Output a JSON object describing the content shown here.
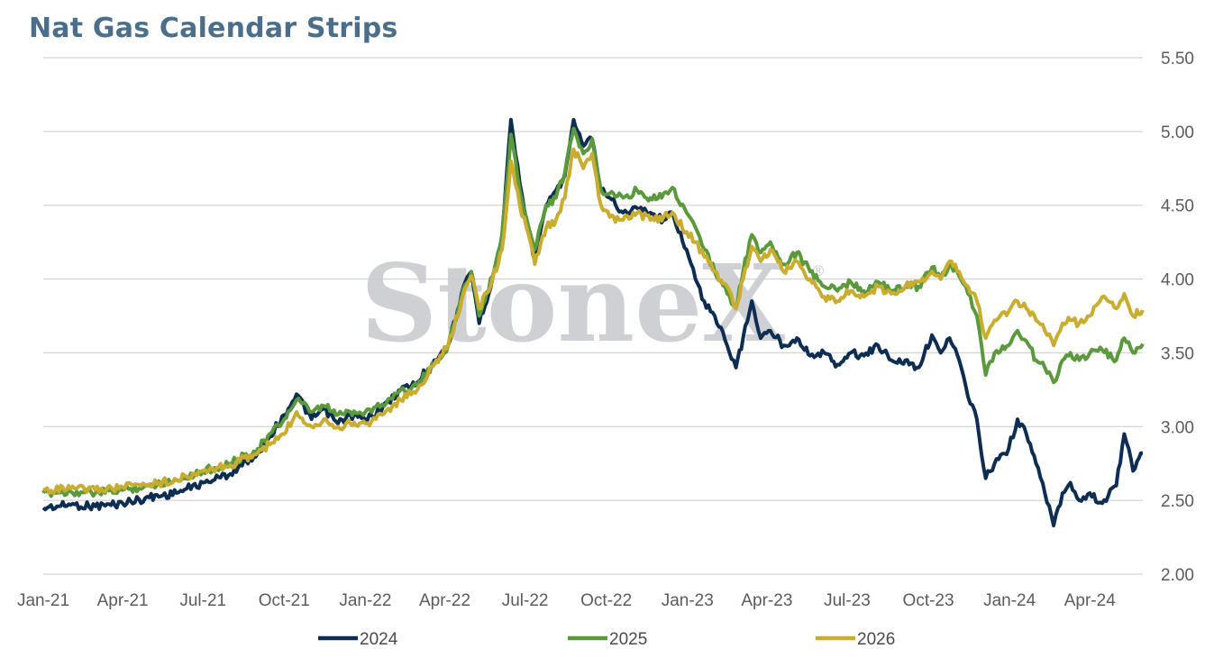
{
  "title": "Nat Gas Calendar Strips",
  "watermark": {
    "text": "StoneX",
    "mark": "®"
  },
  "chart_data": {
    "type": "line",
    "title": "Nat Gas Calendar Strips",
    "xlabel": "",
    "ylabel": "",
    "x_ticks": [
      "Jan-21",
      "Apr-21",
      "Jul-21",
      "Oct-21",
      "Jan-22",
      "Apr-22",
      "Jul-22",
      "Oct-22",
      "Jan-23",
      "Apr-23",
      "Jul-23",
      "Oct-23",
      "Jan-24",
      "Apr-24"
    ],
    "x_tick_dates": [
      "2021-01-01",
      "2021-04-01",
      "2021-07-01",
      "2021-10-01",
      "2022-01-01",
      "2022-04-01",
      "2022-07-01",
      "2022-10-01",
      "2023-01-01",
      "2023-04-01",
      "2023-07-01",
      "2023-10-01",
      "2024-01-01",
      "2024-04-01"
    ],
    "xlim": [
      "2021-01-01",
      "2024-05-31"
    ],
    "ylim": [
      2.0,
      5.5
    ],
    "y_ticks": [
      "2.00",
      "2.50",
      "3.00",
      "3.50",
      "4.00",
      "4.50",
      "5.00",
      "5.50"
    ],
    "y_axis_side": "right",
    "grid": "horizontal",
    "legend_position": "bottom",
    "series": [
      {
        "name": "2024",
        "color": "#0e2d52",
        "points": [
          [
            "2021-01-01",
            2.45
          ],
          [
            "2021-02-01",
            2.47
          ],
          [
            "2021-03-01",
            2.46
          ],
          [
            "2021-04-01",
            2.48
          ],
          [
            "2021-05-01",
            2.52
          ],
          [
            "2021-06-01",
            2.55
          ],
          [
            "2021-07-01",
            2.62
          ],
          [
            "2021-08-01",
            2.68
          ],
          [
            "2021-09-01",
            2.82
          ],
          [
            "2021-10-01",
            3.08
          ],
          [
            "2021-10-15",
            3.22
          ],
          [
            "2021-11-01",
            3.05
          ],
          [
            "2021-11-15",
            3.12
          ],
          [
            "2021-12-01",
            3.02
          ],
          [
            "2021-12-15",
            3.08
          ],
          [
            "2022-01-01",
            3.05
          ],
          [
            "2022-01-20",
            3.12
          ],
          [
            "2022-02-10",
            3.25
          ],
          [
            "2022-03-01",
            3.3
          ],
          [
            "2022-03-20",
            3.45
          ],
          [
            "2022-04-05",
            3.55
          ],
          [
            "2022-04-20",
            3.9
          ],
          [
            "2022-05-01",
            4.05
          ],
          [
            "2022-05-10",
            3.7
          ],
          [
            "2022-05-25",
            4.0
          ],
          [
            "2022-06-05",
            4.3
          ],
          [
            "2022-06-15",
            5.08
          ],
          [
            "2022-06-25",
            4.65
          ],
          [
            "2022-07-05",
            4.35
          ],
          [
            "2022-07-12",
            4.12
          ],
          [
            "2022-07-25",
            4.5
          ],
          [
            "2022-08-05",
            4.6
          ],
          [
            "2022-08-15",
            4.7
          ],
          [
            "2022-08-25",
            5.08
          ],
          [
            "2022-09-05",
            4.9
          ],
          [
            "2022-09-15",
            4.95
          ],
          [
            "2022-09-25",
            4.6
          ],
          [
            "2022-10-05",
            4.55
          ],
          [
            "2022-10-20",
            4.45
          ],
          [
            "2022-11-05",
            4.48
          ],
          [
            "2022-11-20",
            4.45
          ],
          [
            "2022-12-05",
            4.4
          ],
          [
            "2022-12-15",
            4.45
          ],
          [
            "2022-12-31",
            4.2
          ],
          [
            "2023-01-10",
            4.0
          ],
          [
            "2023-01-20",
            3.85
          ],
          [
            "2023-02-01",
            3.75
          ],
          [
            "2023-02-15",
            3.55
          ],
          [
            "2023-02-25",
            3.4
          ],
          [
            "2023-03-05",
            3.6
          ],
          [
            "2023-03-15",
            3.85
          ],
          [
            "2023-03-25",
            3.6
          ],
          [
            "2023-04-05",
            3.65
          ],
          [
            "2023-04-20",
            3.55
          ],
          [
            "2023-05-05",
            3.6
          ],
          [
            "2023-05-20",
            3.48
          ],
          [
            "2023-06-05",
            3.5
          ],
          [
            "2023-06-20",
            3.42
          ],
          [
            "2023-07-05",
            3.5
          ],
          [
            "2023-07-20",
            3.48
          ],
          [
            "2023-08-05",
            3.55
          ],
          [
            "2023-08-20",
            3.45
          ],
          [
            "2023-09-05",
            3.45
          ],
          [
            "2023-09-20",
            3.4
          ],
          [
            "2023-10-05",
            3.62
          ],
          [
            "2023-10-15",
            3.5
          ],
          [
            "2023-10-25",
            3.6
          ],
          [
            "2023-11-05",
            3.45
          ],
          [
            "2023-11-15",
            3.2
          ],
          [
            "2023-11-25",
            3.05
          ],
          [
            "2023-12-05",
            2.65
          ],
          [
            "2023-12-15",
            2.75
          ],
          [
            "2023-12-31",
            2.85
          ],
          [
            "2024-01-10",
            3.05
          ],
          [
            "2024-01-20",
            2.95
          ],
          [
            "2024-01-31",
            2.75
          ],
          [
            "2024-02-10",
            2.55
          ],
          [
            "2024-02-20",
            2.33
          ],
          [
            "2024-03-01",
            2.55
          ],
          [
            "2024-03-10",
            2.62
          ],
          [
            "2024-03-20",
            2.5
          ],
          [
            "2024-04-01",
            2.55
          ],
          [
            "2024-04-15",
            2.48
          ],
          [
            "2024-05-01",
            2.6
          ],
          [
            "2024-05-10",
            2.95
          ],
          [
            "2024-05-20",
            2.7
          ],
          [
            "2024-05-31",
            2.82
          ]
        ]
      },
      {
        "name": "2025",
        "color": "#5a9a3c",
        "points": [
          [
            "2021-01-01",
            2.55
          ],
          [
            "2021-02-01",
            2.56
          ],
          [
            "2021-03-01",
            2.55
          ],
          [
            "2021-04-01",
            2.57
          ],
          [
            "2021-05-01",
            2.6
          ],
          [
            "2021-06-01",
            2.64
          ],
          [
            "2021-07-01",
            2.7
          ],
          [
            "2021-08-01",
            2.75
          ],
          [
            "2021-09-01",
            2.85
          ],
          [
            "2021-10-01",
            3.05
          ],
          [
            "2021-10-15",
            3.18
          ],
          [
            "2021-11-01",
            3.1
          ],
          [
            "2021-11-15",
            3.14
          ],
          [
            "2021-12-01",
            3.08
          ],
          [
            "2021-12-15",
            3.1
          ],
          [
            "2022-01-01",
            3.1
          ],
          [
            "2022-01-20",
            3.15
          ],
          [
            "2022-02-10",
            3.25
          ],
          [
            "2022-03-01",
            3.28
          ],
          [
            "2022-03-20",
            3.42
          ],
          [
            "2022-04-05",
            3.55
          ],
          [
            "2022-04-20",
            3.88
          ],
          [
            "2022-05-01",
            4.05
          ],
          [
            "2022-05-10",
            3.75
          ],
          [
            "2022-05-25",
            4.02
          ],
          [
            "2022-06-05",
            4.3
          ],
          [
            "2022-06-15",
            4.98
          ],
          [
            "2022-06-25",
            4.6
          ],
          [
            "2022-07-05",
            4.35
          ],
          [
            "2022-07-12",
            4.2
          ],
          [
            "2022-07-25",
            4.5
          ],
          [
            "2022-08-05",
            4.55
          ],
          [
            "2022-08-15",
            4.72
          ],
          [
            "2022-08-25",
            5.02
          ],
          [
            "2022-09-05",
            4.85
          ],
          [
            "2022-09-15",
            4.95
          ],
          [
            "2022-09-25",
            4.6
          ],
          [
            "2022-10-05",
            4.58
          ],
          [
            "2022-10-20",
            4.55
          ],
          [
            "2022-11-05",
            4.6
          ],
          [
            "2022-11-20",
            4.55
          ],
          [
            "2022-12-05",
            4.58
          ],
          [
            "2022-12-15",
            4.62
          ],
          [
            "2022-12-31",
            4.45
          ],
          [
            "2023-01-10",
            4.35
          ],
          [
            "2023-01-20",
            4.2
          ],
          [
            "2023-02-01",
            4.05
          ],
          [
            "2023-02-15",
            3.9
          ],
          [
            "2023-02-25",
            3.8
          ],
          [
            "2023-03-05",
            4.05
          ],
          [
            "2023-03-15",
            4.3
          ],
          [
            "2023-03-25",
            4.18
          ],
          [
            "2023-04-05",
            4.25
          ],
          [
            "2023-04-20",
            4.1
          ],
          [
            "2023-05-05",
            4.18
          ],
          [
            "2023-05-20",
            4.05
          ],
          [
            "2023-06-05",
            3.95
          ],
          [
            "2023-06-20",
            3.92
          ],
          [
            "2023-07-05",
            3.98
          ],
          [
            "2023-07-20",
            3.92
          ],
          [
            "2023-08-05",
            3.98
          ],
          [
            "2023-08-20",
            3.92
          ],
          [
            "2023-09-05",
            3.95
          ],
          [
            "2023-09-20",
            3.95
          ],
          [
            "2023-10-05",
            4.08
          ],
          [
            "2023-10-15",
            4.0
          ],
          [
            "2023-10-25",
            4.1
          ],
          [
            "2023-11-05",
            4.02
          ],
          [
            "2023-11-15",
            3.9
          ],
          [
            "2023-11-25",
            3.75
          ],
          [
            "2023-12-05",
            3.35
          ],
          [
            "2023-12-15",
            3.5
          ],
          [
            "2023-12-31",
            3.55
          ],
          [
            "2024-01-10",
            3.65
          ],
          [
            "2024-01-20",
            3.58
          ],
          [
            "2024-01-31",
            3.45
          ],
          [
            "2024-02-10",
            3.4
          ],
          [
            "2024-02-20",
            3.3
          ],
          [
            "2024-03-01",
            3.45
          ],
          [
            "2024-03-10",
            3.5
          ],
          [
            "2024-03-20",
            3.45
          ],
          [
            "2024-04-01",
            3.5
          ],
          [
            "2024-04-15",
            3.52
          ],
          [
            "2024-05-01",
            3.45
          ],
          [
            "2024-05-10",
            3.6
          ],
          [
            "2024-05-20",
            3.5
          ],
          [
            "2024-05-31",
            3.56
          ]
        ]
      },
      {
        "name": "2026",
        "color": "#c9ad30",
        "points": [
          [
            "2021-01-01",
            2.57
          ],
          [
            "2021-02-01",
            2.58
          ],
          [
            "2021-03-01",
            2.57
          ],
          [
            "2021-04-01",
            2.59
          ],
          [
            "2021-05-01",
            2.61
          ],
          [
            "2021-06-01",
            2.64
          ],
          [
            "2021-07-01",
            2.7
          ],
          [
            "2021-08-01",
            2.74
          ],
          [
            "2021-09-01",
            2.82
          ],
          [
            "2021-10-01",
            2.95
          ],
          [
            "2021-10-15",
            3.1
          ],
          [
            "2021-11-01",
            3.0
          ],
          [
            "2021-11-15",
            3.05
          ],
          [
            "2021-12-01",
            3.0
          ],
          [
            "2021-12-15",
            3.02
          ],
          [
            "2022-01-01",
            3.02
          ],
          [
            "2022-01-20",
            3.08
          ],
          [
            "2022-02-10",
            3.18
          ],
          [
            "2022-03-01",
            3.25
          ],
          [
            "2022-03-20",
            3.42
          ],
          [
            "2022-04-05",
            3.55
          ],
          [
            "2022-04-20",
            3.85
          ],
          [
            "2022-05-01",
            4.02
          ],
          [
            "2022-05-10",
            3.8
          ],
          [
            "2022-05-25",
            4.0
          ],
          [
            "2022-06-05",
            4.2
          ],
          [
            "2022-06-15",
            4.8
          ],
          [
            "2022-06-25",
            4.5
          ],
          [
            "2022-07-05",
            4.3
          ],
          [
            "2022-07-12",
            4.1
          ],
          [
            "2022-07-25",
            4.35
          ],
          [
            "2022-08-05",
            4.4
          ],
          [
            "2022-08-15",
            4.55
          ],
          [
            "2022-08-25",
            4.88
          ],
          [
            "2022-09-05",
            4.75
          ],
          [
            "2022-09-15",
            4.85
          ],
          [
            "2022-09-25",
            4.5
          ],
          [
            "2022-10-05",
            4.42
          ],
          [
            "2022-10-20",
            4.4
          ],
          [
            "2022-11-05",
            4.45
          ],
          [
            "2022-11-20",
            4.4
          ],
          [
            "2022-12-05",
            4.42
          ],
          [
            "2022-12-15",
            4.45
          ],
          [
            "2022-12-31",
            4.32
          ],
          [
            "2023-01-10",
            4.25
          ],
          [
            "2023-01-20",
            4.15
          ],
          [
            "2023-02-01",
            4.05
          ],
          [
            "2023-02-15",
            3.95
          ],
          [
            "2023-02-25",
            3.8
          ],
          [
            "2023-03-05",
            4.0
          ],
          [
            "2023-03-15",
            4.22
          ],
          [
            "2023-03-25",
            4.12
          ],
          [
            "2023-04-05",
            4.2
          ],
          [
            "2023-04-20",
            4.05
          ],
          [
            "2023-05-05",
            4.12
          ],
          [
            "2023-05-20",
            4.0
          ],
          [
            "2023-06-05",
            3.88
          ],
          [
            "2023-06-20",
            3.85
          ],
          [
            "2023-07-05",
            3.92
          ],
          [
            "2023-07-20",
            3.88
          ],
          [
            "2023-08-05",
            3.95
          ],
          [
            "2023-08-20",
            3.9
          ],
          [
            "2023-09-05",
            3.95
          ],
          [
            "2023-09-20",
            3.98
          ],
          [
            "2023-10-05",
            4.05
          ],
          [
            "2023-10-15",
            4.0
          ],
          [
            "2023-10-25",
            4.12
          ],
          [
            "2023-11-05",
            4.05
          ],
          [
            "2023-11-15",
            3.95
          ],
          [
            "2023-11-25",
            3.85
          ],
          [
            "2023-12-05",
            3.6
          ],
          [
            "2023-12-15",
            3.72
          ],
          [
            "2023-12-31",
            3.78
          ],
          [
            "2024-01-10",
            3.85
          ],
          [
            "2024-01-20",
            3.8
          ],
          [
            "2024-01-31",
            3.72
          ],
          [
            "2024-02-10",
            3.65
          ],
          [
            "2024-02-20",
            3.55
          ],
          [
            "2024-03-01",
            3.7
          ],
          [
            "2024-03-10",
            3.72
          ],
          [
            "2024-03-20",
            3.7
          ],
          [
            "2024-04-01",
            3.75
          ],
          [
            "2024-04-15",
            3.88
          ],
          [
            "2024-05-01",
            3.8
          ],
          [
            "2024-05-10",
            3.9
          ],
          [
            "2024-05-20",
            3.75
          ],
          [
            "2024-05-31",
            3.79
          ]
        ]
      }
    ]
  }
}
